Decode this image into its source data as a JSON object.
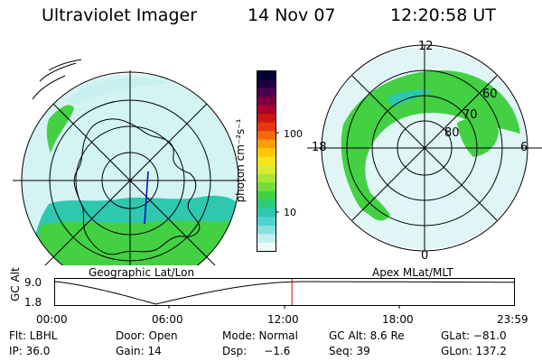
{
  "header": {
    "title": "Ultraviolet Imager",
    "date": "14 Nov 07",
    "time": "12:20:58 UT"
  },
  "left_panel": {
    "caption": "Geographic Lat/Lon"
  },
  "right_panel": {
    "caption": "Apex MLat/MLT",
    "mlt_labels": {
      "top": "12",
      "left": "18",
      "right": "6",
      "bottom": "0"
    },
    "lat_labels": [
      "60",
      "70",
      "80"
    ]
  },
  "colorbar": {
    "unit_label": "photon cm⁻²s⁻¹",
    "ticks": [
      {
        "label": "100",
        "value": 100
      },
      {
        "label": "10",
        "value": 10
      }
    ],
    "colors": [
      "#000033",
      "#1a0040",
      "#4b0050",
      "#7a0040",
      "#a8002a",
      "#cc1515",
      "#e8380c",
      "#f56a08",
      "#fb9d06",
      "#fdc806",
      "#f8e41a",
      "#d8ec30",
      "#a8e635",
      "#72dc3a",
      "#43d043",
      "#2ccb7a",
      "#2ec8b0",
      "#4fd3d2",
      "#89e0e0",
      "#c6efef",
      "#eef9f9"
    ]
  },
  "altitude_plot": {
    "ylabel": "GC Alt",
    "yticks": [
      "9.0",
      "1.8"
    ],
    "xticks": [
      "00:00",
      "06:00",
      "12:00",
      "18:00",
      "23:59"
    ],
    "current_time_fraction": 0.516,
    "current_marker_color": "#e00000"
  },
  "footer": {
    "flt": "Flt: LBHL",
    "door": "Door: Open",
    "mode": "Mode: Normal",
    "gcalt": "GC Alt: 8.6 Re",
    "glat": "GLat: −81.0",
    "ip": "IP: 36.0",
    "gain": "Gain: 14",
    "dsp": "Dsp:     −1.6",
    "seq": "Seq: 39",
    "glon": "GLon: 137.2"
  },
  "colors": {
    "aurora_green": "#43d043",
    "aurora_teal": "#2ec8b0",
    "aurora_lightcyan": "#c6efef"
  }
}
